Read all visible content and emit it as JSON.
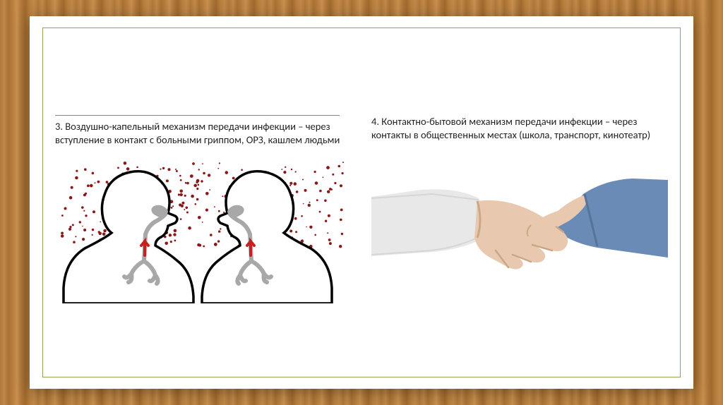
{
  "slide": {
    "background_color": "#ffffff",
    "frame_color": "#8aa84f",
    "wood_colors": [
      "#b0783a",
      "#c08849",
      "#a87234",
      "#b87e3d",
      "#c8904f"
    ]
  },
  "left": {
    "text": "3. Воздушно-капельный механизм передачи инфекции – через вступление в контакт с больными гриппом, ОРЗ, кашлем людьми",
    "diagram": {
      "type": "infographic",
      "name": "airborne-transmission",
      "silhouette_stroke": "#000000",
      "silhouette_fill": "#ffffff",
      "airway_fill": "#a8a8a8",
      "arrow_fill": "#c62020",
      "droplet_color": "#8a1818",
      "droplet_count": 240
    }
  },
  "right": {
    "text": "4. Контактно-бытовой механизм передачи инфекции – через контакты в общественных местах (школа, транспорт, кинотеатр)",
    "diagram": {
      "type": "infographic",
      "name": "contact-transmission-handshake",
      "sleeve_left_color": "#e8e8e8",
      "sleeve_right_color": "#6a8bb5",
      "skin_color": "#e8c9af",
      "skin_shadow": "#caa787",
      "background_color": "#ffffff"
    }
  },
  "typography": {
    "body_fontsize": 14.5,
    "body_color": "#222222",
    "line_height": 1.32
  }
}
